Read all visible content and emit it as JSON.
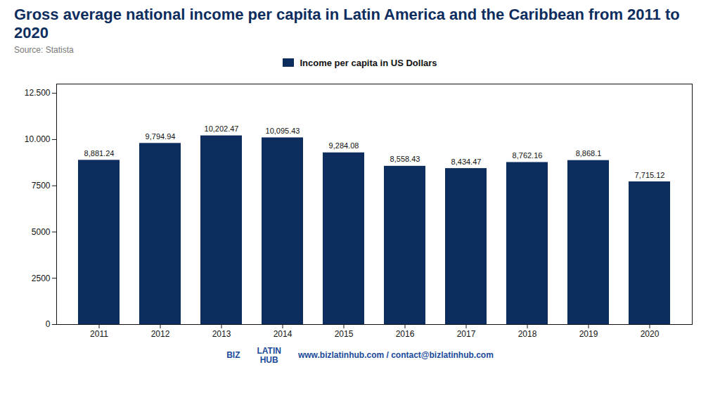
{
  "chart_data": {
    "type": "bar",
    "title": "Gross average national income per capita in Latin America and the Caribbean from 2011 to 2020",
    "subtitle": "Source: Statista",
    "annotations": [
      "BIZ",
      "LATIN\nHUB",
      "www.bizlatinhub.com / contact@bizlatinhub.com"
    ],
    "categories": [
      "2011",
      "2012",
      "2013",
      "2014",
      "2015",
      "2016",
      "2017",
      "2018",
      "2019",
      "2020"
    ],
    "series": [
      {
        "name": "Income per capita in US Dollars",
        "color": "#0d2d5e",
        "values": [
          8881.24,
          9794.94,
          10202.47,
          10095.43,
          9284.08,
          8558.43,
          8434.47,
          8762.16,
          8868.1,
          7715.12
        ],
        "value_labels": [
          "8,881.24",
          "9,794.94",
          "10,202.47",
          "10,095.43",
          "9,284.08",
          "8,558.43",
          "8,434.47",
          "8,762.16",
          "8,868.1",
          "7,715.12"
        ]
      }
    ],
    "ylim": [
      0,
      13000
    ],
    "yticks": [
      0,
      2500,
      5000,
      7500,
      {
        "value": 10000,
        "label": "10.000"
      },
      {
        "value": 12500,
        "label": "12.500"
      }
    ],
    "grid": false,
    "legend": "top",
    "data_labels": true
  }
}
